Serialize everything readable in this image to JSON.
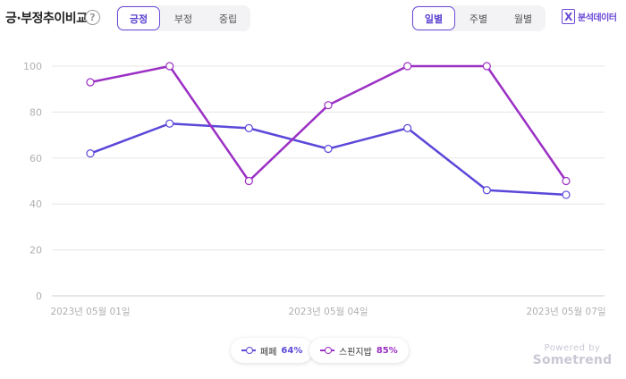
{
  "header": {
    "title": "긍·부정추이비교",
    "help_icon": "question-circle-icon",
    "sentiment_tabs": [
      {
        "label": "긍정",
        "active": true
      },
      {
        "label": "부정",
        "active": false
      },
      {
        "label": "중립",
        "active": false
      }
    ],
    "period_tabs": [
      {
        "label": "일별",
        "active": true
      },
      {
        "label": "주별",
        "active": false
      },
      {
        "label": "월별",
        "active": false
      }
    ],
    "export_label": "분석데이터",
    "export_icon": "excel-x-icon"
  },
  "chart_data": {
    "type": "line",
    "x": [
      "2023-05-01",
      "2023-05-02",
      "2023-05-03",
      "2023-05-04",
      "2023-05-05",
      "2023-05-06",
      "2023-05-07"
    ],
    "x_tick_labels": [
      {
        "index": 0,
        "label": "2023년 05월 01일"
      },
      {
        "index": 3,
        "label": "2023년 05월 04일"
      },
      {
        "index": 6,
        "label": "2023년 05월 07일"
      }
    ],
    "ylim": [
      0,
      100
    ],
    "y_ticks": [
      0,
      20,
      40,
      60,
      80,
      100
    ],
    "grid": true,
    "legend_position": "bottom-center",
    "series": [
      {
        "name": "페페",
        "summary": "64%",
        "color": "#5b48d9",
        "values": [
          62,
          75,
          73,
          64,
          73,
          46,
          44
        ]
      },
      {
        "name": "스핀지밥",
        "summary": "85%",
        "color": "#9b2fc4",
        "values": [
          93,
          100,
          50,
          83,
          100,
          100,
          50
        ]
      }
    ]
  },
  "branding": {
    "powered_by": "Powered by",
    "name": "Sometrend"
  }
}
